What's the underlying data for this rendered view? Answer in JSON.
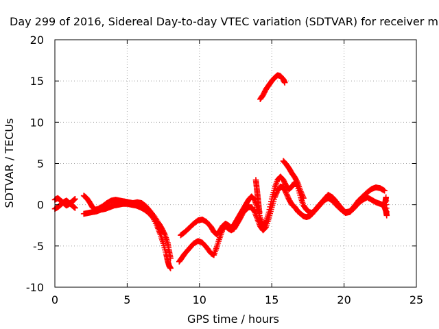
{
  "chart_data": {
    "type": "scatter",
    "title": "Day 299 of 2016, Sidereal Day-to-day VTEC variation (SDTVAR) for receiver m",
    "xlabel": "GPS time / hours",
    "ylabel": "SDTVAR / TECUs",
    "xlim": [
      0,
      25
    ],
    "ylim": [
      -10,
      20
    ],
    "xticks": [
      "0",
      "5",
      "10",
      "15",
      "20",
      "25"
    ],
    "yticks": [
      "-10",
      "-5",
      "0",
      "5",
      "10",
      "15",
      "20"
    ],
    "grid": true,
    "legend": "none",
    "marker": "plus",
    "color": "#ff0000",
    "series": [
      {
        "points": [
          [
            0.0,
            0.6
          ],
          [
            0.2,
            0.8
          ],
          [
            0.4,
            0.5
          ],
          [
            0.6,
            0.2
          ],
          [
            0.8,
            -0.1
          ],
          [
            1.0,
            0.1
          ],
          [
            1.2,
            0.4
          ],
          [
            1.4,
            0.7
          ]
        ]
      },
      {
        "points": [
          [
            0.0,
            -0.5
          ],
          [
            0.2,
            -0.3
          ],
          [
            0.4,
            0.0
          ],
          [
            0.6,
            0.3
          ],
          [
            0.8,
            0.5
          ],
          [
            1.0,
            0.2
          ],
          [
            1.2,
            -0.1
          ],
          [
            1.4,
            -0.4
          ]
        ]
      },
      {
        "points": [
          [
            2.0,
            1.1
          ],
          [
            2.2,
            0.8
          ],
          [
            2.4,
            0.3
          ],
          [
            2.6,
            -0.3
          ],
          [
            2.8,
            -0.6
          ],
          [
            3.0,
            -0.5
          ],
          [
            3.3,
            -0.2
          ],
          [
            3.6,
            0.2
          ],
          [
            3.9,
            0.5
          ],
          [
            4.2,
            0.6
          ],
          [
            4.5,
            0.5
          ],
          [
            4.8,
            0.4
          ],
          [
            5.1,
            0.3
          ],
          [
            5.4,
            0.2
          ],
          [
            5.7,
            0.3
          ],
          [
            6.0,
            0.2
          ],
          [
            6.3,
            -0.2
          ],
          [
            6.6,
            -0.8
          ],
          [
            6.9,
            -1.5
          ],
          [
            7.2,
            -2.3
          ],
          [
            7.4,
            -2.9
          ],
          [
            7.6,
            -3.6
          ],
          [
            7.8,
            -4.6
          ],
          [
            7.9,
            -5.6
          ],
          [
            8.0,
            -6.5
          ]
        ]
      },
      {
        "points": [
          [
            2.0,
            -1.1
          ],
          [
            2.3,
            -1.0
          ],
          [
            2.6,
            -0.9
          ],
          [
            2.9,
            -0.8
          ],
          [
            3.2,
            -0.6
          ],
          [
            3.5,
            -0.5
          ],
          [
            3.8,
            -0.3
          ],
          [
            4.1,
            -0.1
          ],
          [
            4.4,
            0.0
          ],
          [
            4.7,
            0.1
          ],
          [
            5.0,
            0.1
          ],
          [
            5.3,
            0.0
          ],
          [
            5.6,
            -0.1
          ],
          [
            5.9,
            -0.3
          ],
          [
            6.2,
            -0.6
          ],
          [
            6.5,
            -1.0
          ],
          [
            6.8,
            -1.6
          ],
          [
            7.1,
            -2.7
          ],
          [
            7.3,
            -3.6
          ],
          [
            7.5,
            -4.7
          ],
          [
            7.7,
            -6.0
          ],
          [
            7.8,
            -6.8
          ],
          [
            7.9,
            -7.4
          ],
          [
            8.0,
            -7.7
          ]
        ]
      },
      {
        "points": [
          [
            8.7,
            -3.7
          ],
          [
            9.0,
            -3.3
          ],
          [
            9.3,
            -2.8
          ],
          [
            9.6,
            -2.3
          ],
          [
            9.9,
            -1.9
          ],
          [
            10.2,
            -1.8
          ],
          [
            10.5,
            -2.1
          ],
          [
            10.8,
            -2.7
          ],
          [
            11.0,
            -3.3
          ],
          [
            11.2,
            -3.6
          ],
          [
            11.4,
            -3.2
          ],
          [
            11.6,
            -2.6
          ],
          [
            11.8,
            -2.3
          ],
          [
            12.0,
            -2.5
          ],
          [
            12.2,
            -2.8
          ],
          [
            12.4,
            -2.4
          ],
          [
            12.6,
            -1.8
          ],
          [
            12.8,
            -1.2
          ],
          [
            13.0,
            -0.6
          ],
          [
            13.2,
            0.0
          ],
          [
            13.4,
            0.6
          ],
          [
            13.6,
            1.0
          ],
          [
            13.8,
            0.6
          ],
          [
            14.0,
            -0.3
          ],
          [
            14.2,
            -1.6
          ],
          [
            14.4,
            -2.5
          ],
          [
            14.6,
            -2.1
          ],
          [
            14.8,
            -0.9
          ],
          [
            15.0,
            0.7
          ],
          [
            15.2,
            2.0
          ],
          [
            15.4,
            3.0
          ],
          [
            15.6,
            3.4
          ],
          [
            15.8,
            3.0
          ],
          [
            16.0,
            2.3
          ],
          [
            16.2,
            1.9
          ],
          [
            16.4,
            2.2
          ],
          [
            16.6,
            2.7
          ],
          [
            16.8,
            2.2
          ],
          [
            17.0,
            0.9
          ],
          [
            17.2,
            -0.1
          ],
          [
            17.4,
            -0.6
          ],
          [
            17.6,
            -0.9
          ],
          [
            17.8,
            -1.0
          ],
          [
            18.0,
            -0.7
          ],
          [
            18.3,
            -0.1
          ],
          [
            18.6,
            0.5
          ],
          [
            18.9,
            0.8
          ],
          [
            19.2,
            0.5
          ],
          [
            19.5,
            -0.1
          ],
          [
            19.8,
            -0.6
          ],
          [
            20.1,
            -1.0
          ],
          [
            20.4,
            -0.9
          ],
          [
            20.7,
            -0.4
          ],
          [
            21.0,
            0.2
          ],
          [
            21.3,
            0.6
          ],
          [
            21.6,
            0.9
          ],
          [
            21.9,
            0.6
          ],
          [
            22.2,
            0.3
          ],
          [
            22.5,
            0.1
          ],
          [
            22.8,
            -0.1
          ]
        ]
      },
      {
        "points": [
          [
            8.6,
            -6.9
          ],
          [
            8.8,
            -6.4
          ],
          [
            9.0,
            -5.9
          ],
          [
            9.3,
            -5.3
          ],
          [
            9.6,
            -4.7
          ],
          [
            9.9,
            -4.4
          ],
          [
            10.2,
            -4.6
          ],
          [
            10.5,
            -5.2
          ],
          [
            10.8,
            -5.9
          ],
          [
            11.0,
            -6.1
          ],
          [
            11.2,
            -5.1
          ],
          [
            11.4,
            -4.0
          ],
          [
            11.6,
            -3.0
          ],
          [
            11.8,
            -2.6
          ],
          [
            12.0,
            -2.9
          ],
          [
            12.2,
            -3.1
          ],
          [
            12.4,
            -2.9
          ],
          [
            12.6,
            -2.3
          ],
          [
            12.8,
            -1.7
          ],
          [
            13.0,
            -1.0
          ],
          [
            13.2,
            -0.6
          ],
          [
            13.4,
            -0.3
          ],
          [
            13.6,
            -0.3
          ],
          [
            13.8,
            -0.8
          ],
          [
            14.0,
            -1.7
          ],
          [
            14.2,
            -2.6
          ],
          [
            14.4,
            -3.1
          ],
          [
            14.6,
            -2.7
          ],
          [
            14.8,
            -1.6
          ],
          [
            15.0,
            -0.3
          ],
          [
            15.2,
            0.9
          ],
          [
            15.4,
            1.7
          ],
          [
            15.6,
            2.2
          ],
          [
            15.8,
            2.1
          ],
          [
            16.0,
            1.4
          ],
          [
            16.2,
            0.6
          ],
          [
            16.4,
            0.0
          ],
          [
            16.6,
            -0.3
          ],
          [
            16.8,
            -0.8
          ],
          [
            17.0,
            -1.1
          ],
          [
            17.2,
            -1.4
          ],
          [
            17.4,
            -1.5
          ],
          [
            17.6,
            -1.4
          ],
          [
            17.8,
            -1.1
          ],
          [
            18.0,
            -0.6
          ],
          [
            18.3,
            0.0
          ],
          [
            18.6,
            0.6
          ],
          [
            18.9,
            1.2
          ],
          [
            19.2,
            0.9
          ],
          [
            19.5,
            0.3
          ],
          [
            19.8,
            -0.4
          ],
          [
            20.1,
            -0.9
          ],
          [
            20.4,
            -0.8
          ],
          [
            20.7,
            -0.2
          ],
          [
            21.0,
            0.5
          ],
          [
            21.3,
            1.0
          ],
          [
            21.6,
            1.5
          ],
          [
            21.9,
            1.9
          ],
          [
            22.2,
            2.1
          ],
          [
            22.5,
            2.0
          ],
          [
            22.8,
            1.7
          ]
        ]
      },
      {
        "points": [
          [
            13.9,
            3.0
          ],
          [
            13.95,
            2.2
          ],
          [
            14.0,
            1.4
          ],
          [
            14.05,
            0.6
          ],
          [
            14.1,
            -0.2
          ],
          [
            14.15,
            -1.0
          ]
        ]
      },
      {
        "points": [
          [
            15.8,
            5.3
          ],
          [
            16.0,
            4.9
          ],
          [
            16.2,
            4.4
          ],
          [
            16.4,
            3.8
          ],
          [
            16.6,
            3.3
          ],
          [
            16.8,
            2.6
          ],
          [
            17.0,
            1.6
          ],
          [
            17.2,
            0.8
          ]
        ]
      },
      {
        "points": [
          [
            22.8,
            -0.3
          ],
          [
            22.9,
            -0.8
          ],
          [
            22.95,
            -1.3
          ],
          [
            22.9,
            0.9
          ],
          [
            22.85,
            0.3
          ]
        ]
      },
      {
        "points": [
          [
            14.2,
            12.8
          ],
          [
            14.4,
            13.3
          ],
          [
            14.6,
            14.0
          ],
          [
            14.8,
            14.5
          ],
          [
            15.0,
            15.0
          ],
          [
            15.2,
            15.4
          ],
          [
            15.4,
            15.7
          ],
          [
            15.6,
            15.6
          ],
          [
            15.8,
            15.2
          ],
          [
            15.9,
            14.8
          ]
        ]
      }
    ]
  }
}
